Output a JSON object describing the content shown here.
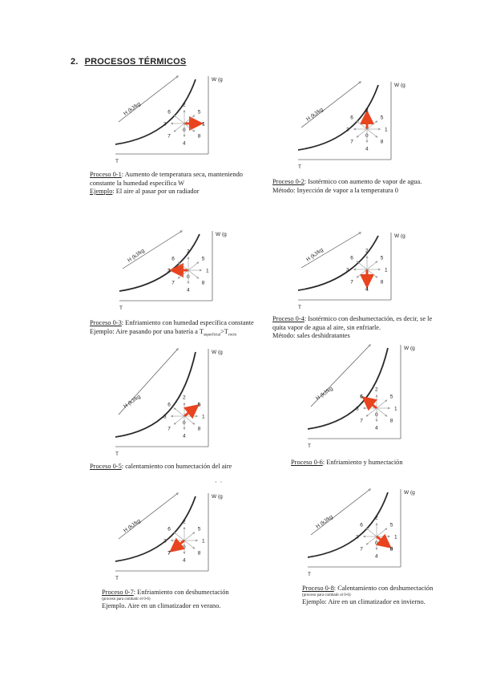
{
  "section": {
    "number": "2.",
    "title": "PROCESOS TÉRMICOS"
  },
  "common": {
    "y_label": "W (g",
    "x_label": "T",
    "enthalpy_label": "H (kJ/kg",
    "numbers": [
      "0",
      "1",
      "2",
      "3",
      "4",
      "5",
      "6",
      "7",
      "8"
    ]
  },
  "colors": {
    "arrow": "#e8441f",
    "curve": "#2a2a2a",
    "guide": "#999999"
  },
  "processes": [
    {
      "id": "0-1",
      "highlight": "1",
      "caption_prefix": "Proceso 0-1",
      "caption_rest": ": Aumento de temperatura seca, manteniendo",
      "line2": "constante la humedad específica W",
      "example_label": "Ejemplo",
      "example_rest": ": El aire al pasar por un radiador"
    },
    {
      "id": "0-2",
      "highlight": "2",
      "caption_prefix": "Proceso 0-2",
      "caption_rest": ":  Isotérmico con aumento de vapor de agua.",
      "line2": "Método: Inyección de vapor a la temperatura 0"
    },
    {
      "id": "0-3",
      "highlight": "3",
      "caption_prefix": "Proceso 0-3",
      "caption_rest": ": Enfriamiento  con humedad específica constante",
      "line2": "Ejemplo: Aire pasando por una batería a T",
      "sub1": "superficial",
      "mid": ">T",
      "sub2": "rocío"
    },
    {
      "id": "0-4",
      "highlight": "4",
      "caption_prefix": "Proceso 0-4",
      "caption_rest": ":   Isotérmico con deshumectación, es decir, se le",
      "line2": "quita vapor de agua al aire, sin enfriarle.",
      "line3": "Método: sales deshidratantes"
    },
    {
      "id": "0-5",
      "highlight": "5",
      "caption_prefix": "Proceso 0-5",
      "caption_rest": ": calentamiento con humectación del aire"
    },
    {
      "id": "0-6",
      "highlight": "6",
      "caption_prefix": "Proceso 0-6",
      "caption_rest": ": Enfriamiento y humectación"
    },
    {
      "id": "0-7",
      "highlight": "7",
      "caption_prefix": "Proceso 0-7",
      "caption_rest": ": Enfriamiento con deshumectación",
      "note": "(proceso para combatir el 0-6)",
      "line2": "Ejemplo. Aire en un climatizador en verano."
    },
    {
      "id": "0-8",
      "highlight": "8",
      "caption_prefix": "Proceso 0-8",
      "caption_rest": ":  Calentamiento con deshumectación",
      "note": "(proceso para combatir el 0-6)",
      "line2": "Ejemplo: Aire en un climatizador en invierno."
    }
  ]
}
